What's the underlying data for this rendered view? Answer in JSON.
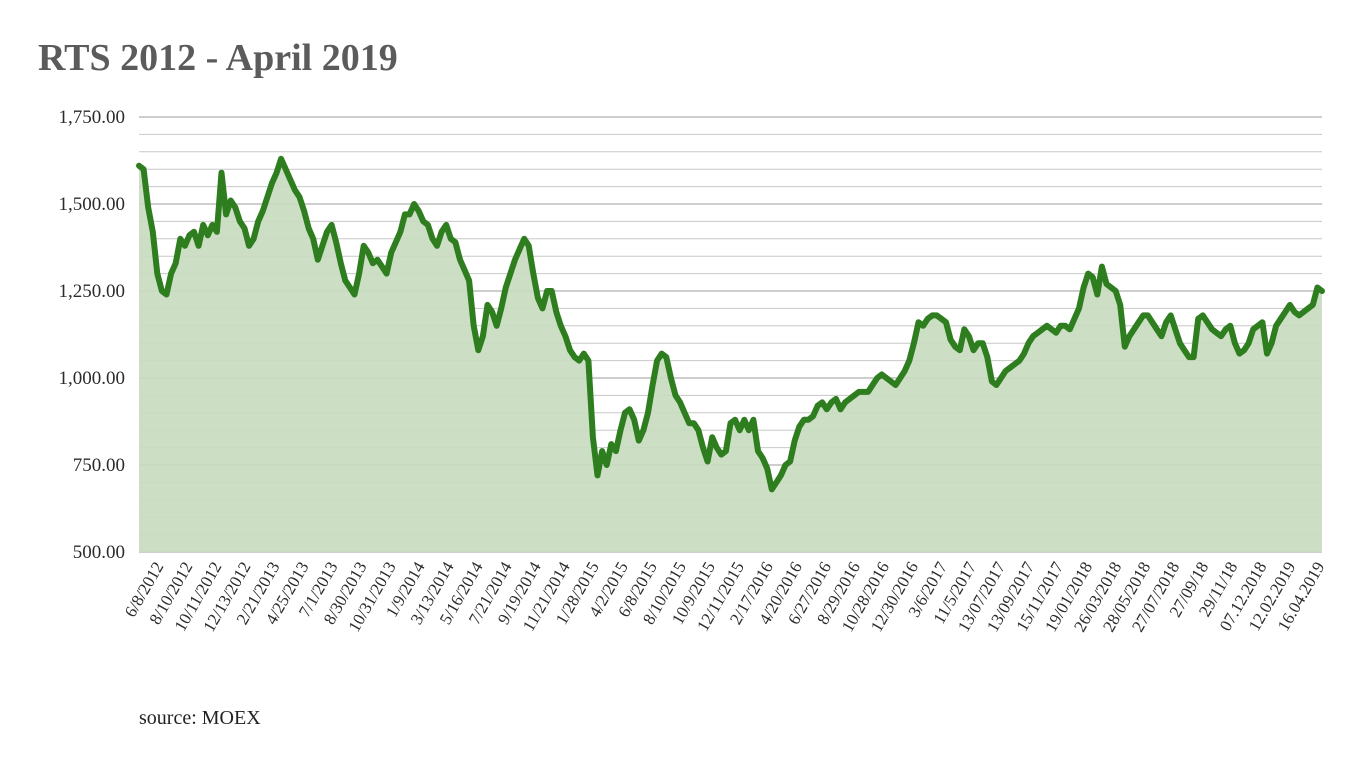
{
  "chart_data": {
    "type": "area",
    "title": "RTS 2012 - April 2019",
    "source": "source: MOEX",
    "xlabel": "",
    "ylabel": "",
    "ylim": [
      500,
      1750
    ],
    "yticks": [
      500,
      750,
      1000,
      1250,
      1500,
      1750
    ],
    "ytick_labels": [
      "500.00",
      "750.00",
      "1,000.00",
      "1,250.00",
      "1,500.00",
      "1,750.00"
    ],
    "minor_grid_step": 50,
    "grid": true,
    "legend": "none",
    "xtick_labels": [
      "6/8/2012",
      "8/10/2012",
      "10/11/2012",
      "12/13/2012",
      "2/21/2013",
      "4/25/2013",
      "7/1/2013",
      "8/30/2013",
      "10/31/2013",
      "1/9/2014",
      "3/13/2014",
      "5/16/2014",
      "7/21/2014",
      "9/19/2014",
      "11/21/2014",
      "1/28/2015",
      "4/2/2015",
      "6/8/2015",
      "8/10/2015",
      "10/9/2015",
      "12/11/2015",
      "2/17/2016",
      "4/20/2016",
      "6/27/2016",
      "8/29/2016",
      "10/28/2016",
      "12/30/2016",
      "3/6/2017",
      "11/5/2017",
      "13/07/2017",
      "13/09/2017",
      "15/11/2017",
      "19/01/2018",
      "26/03/2018",
      "28/05/2018",
      "27/07/2018",
      "27/09/18",
      "29/11/18",
      "07.12.2018",
      "12.02.2019",
      "16.04.2019"
    ],
    "colors": {
      "line": "#2e7d1f",
      "fill": "#c7dcbf",
      "grid": "#c8c8c8",
      "grid_major": "#bdbdbd",
      "title": "#5b5b5b"
    },
    "series": [
      {
        "values": [
          1610,
          1600,
          1490,
          1420,
          1300,
          1250,
          1240,
          1300,
          1330,
          1400,
          1380,
          1410,
          1420,
          1380,
          1440,
          1410,
          1440,
          1420,
          1590,
          1470,
          1510,
          1490,
          1450,
          1430,
          1380,
          1400,
          1450,
          1480,
          1520,
          1560,
          1590,
          1630,
          1600,
          1570,
          1540,
          1520,
          1480,
          1430,
          1400,
          1340,
          1380,
          1420,
          1440,
          1390,
          1330,
          1280,
          1260,
          1240,
          1300,
          1380,
          1360,
          1330,
          1340,
          1320,
          1300,
          1360,
          1390,
          1420,
          1470,
          1470,
          1500,
          1480,
          1450,
          1440,
          1400,
          1380,
          1420,
          1440,
          1400,
          1390,
          1340,
          1310,
          1280,
          1150,
          1080,
          1120,
          1210,
          1190,
          1150,
          1200,
          1260,
          1300,
          1340,
          1370,
          1400,
          1380,
          1300,
          1230,
          1200,
          1250,
          1250,
          1190,
          1150,
          1120,
          1080,
          1060,
          1050,
          1070,
          1050,
          830,
          720,
          790,
          750,
          810,
          790,
          850,
          900,
          910,
          880,
          820,
          850,
          900,
          980,
          1050,
          1070,
          1060,
          1000,
          950,
          930,
          900,
          870,
          870,
          850,
          800,
          760,
          830,
          800,
          780,
          790,
          870,
          880,
          850,
          880,
          850,
          880,
          790,
          770,
          740,
          680,
          700,
          720,
          750,
          760,
          820,
          860,
          880,
          880,
          890,
          920,
          930,
          910,
          930,
          940,
          910,
          930,
          940,
          950,
          960,
          960,
          960,
          980,
          1000,
          1010,
          1000,
          990,
          980,
          1000,
          1020,
          1050,
          1100,
          1160,
          1150,
          1170,
          1180,
          1180,
          1170,
          1160,
          1110,
          1090,
          1080,
          1140,
          1120,
          1080,
          1100,
          1100,
          1060,
          990,
          980,
          1000,
          1020,
          1030,
          1040,
          1050,
          1070,
          1100,
          1120,
          1130,
          1140,
          1150,
          1140,
          1130,
          1150,
          1150,
          1140,
          1170,
          1200,
          1260,
          1300,
          1290,
          1240,
          1320,
          1270,
          1260,
          1250,
          1210,
          1090,
          1120,
          1140,
          1160,
          1180,
          1180,
          1160,
          1140,
          1120,
          1160,
          1180,
          1140,
          1100,
          1080,
          1060,
          1060,
          1170,
          1180,
          1160,
          1140,
          1130,
          1120,
          1140,
          1150,
          1100,
          1070,
          1080,
          1100,
          1140,
          1150,
          1160,
          1070,
          1100,
          1150,
          1170,
          1190,
          1210,
          1190,
          1180,
          1190,
          1200,
          1210,
          1260,
          1250
        ]
      }
    ]
  }
}
